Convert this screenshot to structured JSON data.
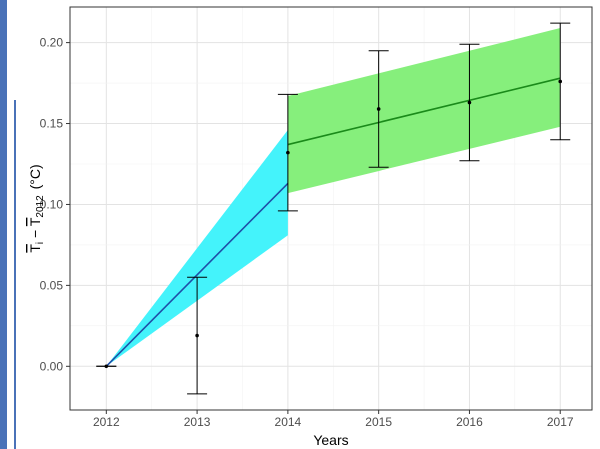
{
  "chart_data": {
    "type": "line",
    "xlabel": "Years",
    "ylabel_main": "T",
    "ylabel_sub_i": "i",
    "ylabel_minus": " − ",
    "ylabel_sub_2012": "2012",
    "ylabel_unit": "(°C)",
    "xlim": [
      2011.6,
      2017.35
    ],
    "ylim": [
      -0.027,
      0.222
    ],
    "x_ticks": [
      2012,
      2013,
      2014,
      2015,
      2016,
      2017
    ],
    "x_tick_labels": [
      "2012",
      "2013",
      "2014",
      "2015",
      "2016",
      "2017"
    ],
    "y_ticks": [
      0.0,
      0.05,
      0.1,
      0.15,
      0.2
    ],
    "y_tick_labels": [
      "0.00",
      "0.05",
      "0.10",
      "0.15",
      "0.20"
    ],
    "grid": true,
    "points": [
      {
        "x": 2012,
        "y": 0.0,
        "err_low": 0.0,
        "err_high": 0.0
      },
      {
        "x": 2013,
        "y": 0.019,
        "err_low": -0.017,
        "err_high": 0.055
      },
      {
        "x": 2014,
        "y": 0.132,
        "err_low": 0.096,
        "err_high": 0.168
      },
      {
        "x": 2015,
        "y": 0.159,
        "err_low": 0.123,
        "err_high": 0.195
      },
      {
        "x": 2016,
        "y": 0.163,
        "err_low": 0.127,
        "err_high": 0.199
      },
      {
        "x": 2017,
        "y": 0.176,
        "err_low": 0.14,
        "err_high": 0.212
      }
    ],
    "series": [
      {
        "color": "#1f4fa8",
        "band_color": "#44f3fb",
        "x": [
          2012,
          2014
        ],
        "y": [
          0.0,
          0.113
        ],
        "band_low": [
          0.0,
          0.081
        ],
        "band_high": [
          0.0,
          0.146
        ]
      },
      {
        "color": "#1a8a1a",
        "band_color": "#86ef7c",
        "x": [
          2014,
          2017
        ],
        "y": [
          0.137,
          0.178
        ],
        "band_low": [
          0.107,
          0.148
        ],
        "band_high": [
          0.167,
          0.209
        ]
      }
    ]
  }
}
